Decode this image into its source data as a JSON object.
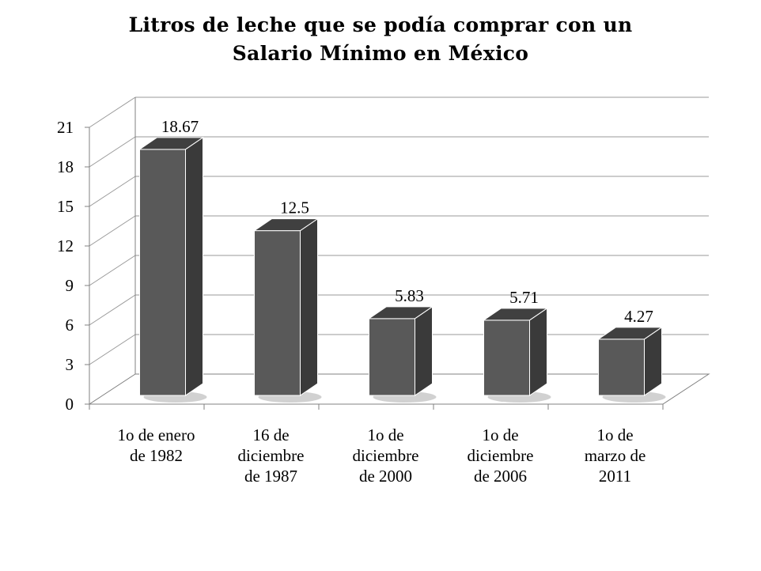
{
  "chart_data": {
    "type": "bar",
    "title_lines": [
      "Litros de leche que se podía comprar con un",
      "Salario Mínimo en México"
    ],
    "categories": [
      [
        "1o de enero",
        "de 1982"
      ],
      [
        "16 de",
        "diciembre",
        "de 1987"
      ],
      [
        "1o de",
        "diciembre",
        "de 2000"
      ],
      [
        "1o de",
        "diciembre",
        "de 2006"
      ],
      [
        "1o de",
        "marzo de",
        "2011"
      ]
    ],
    "values": [
      18.67,
      12.5,
      5.83,
      5.71,
      4.27
    ],
    "data_labels": [
      "18.67",
      "12.5",
      "5.83",
      "5.71",
      "4.27"
    ],
    "y_ticks": [
      "0",
      "3",
      "6",
      "9",
      "12",
      "15",
      "18",
      "21"
    ],
    "ylim": [
      0,
      21
    ],
    "xlabel": "",
    "ylabel": "",
    "grid": true,
    "legend": "none",
    "style": "3d-column",
    "colors": {
      "bar_front": "#595959",
      "bar_top": "#404040",
      "bar_side": "#3a3a3a",
      "bar_edge": "#ffffff",
      "grid": "#9a9a9a",
      "axis": "#808080"
    }
  }
}
